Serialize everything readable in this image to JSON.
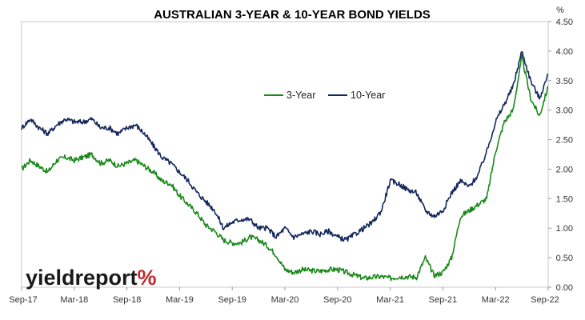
{
  "chart_data": {
    "type": "line",
    "title": "AUSTRALIAN 3-YEAR & 10-YEAR BOND YIELDS",
    "ylabel": "%",
    "ylim": [
      0,
      4.5
    ],
    "yticks": [
      "0.00",
      "0.50",
      "1.00",
      "1.50",
      "2.00",
      "2.50",
      "3.00",
      "3.50",
      "4.00",
      "4.50"
    ],
    "xtick_labels": [
      "Sep-17",
      "Mar-18",
      "Sep-18",
      "Mar-19",
      "Sep-19",
      "Mar-20",
      "Sep-20",
      "Mar-21",
      "Sep-21",
      "Mar-22",
      "Sep-22"
    ],
    "x": [
      "2017-09",
      "2017-10",
      "2017-11",
      "2017-12",
      "2018-01",
      "2018-02",
      "2018-03",
      "2018-04",
      "2018-05",
      "2018-06",
      "2018-07",
      "2018-08",
      "2018-09",
      "2018-10",
      "2018-11",
      "2018-12",
      "2019-01",
      "2019-02",
      "2019-03",
      "2019-04",
      "2019-05",
      "2019-06",
      "2019-07",
      "2019-08",
      "2019-09",
      "2019-10",
      "2019-11",
      "2019-12",
      "2020-01",
      "2020-02",
      "2020-03",
      "2020-04",
      "2020-05",
      "2020-06",
      "2020-07",
      "2020-08",
      "2020-09",
      "2020-10",
      "2020-11",
      "2020-12",
      "2021-01",
      "2021-02",
      "2021-03",
      "2021-04",
      "2021-05",
      "2021-06",
      "2021-07",
      "2021-08",
      "2021-09",
      "2021-10",
      "2021-11",
      "2021-12",
      "2022-01",
      "2022-02",
      "2022-03",
      "2022-04",
      "2022-05",
      "2022-06",
      "2022-07",
      "2022-08",
      "2022-09"
    ],
    "series": [
      {
        "name": "3-Year",
        "color": "#1a8a1a",
        "values": [
          2.0,
          2.15,
          2.05,
          1.95,
          2.15,
          2.2,
          2.15,
          2.2,
          2.25,
          2.1,
          2.15,
          2.05,
          2.1,
          2.15,
          2.05,
          1.95,
          1.8,
          1.75,
          1.55,
          1.4,
          1.25,
          1.05,
          0.95,
          0.8,
          0.75,
          0.75,
          0.85,
          0.8,
          0.7,
          0.55,
          0.3,
          0.25,
          0.3,
          0.28,
          0.27,
          0.3,
          0.3,
          0.25,
          0.2,
          0.15,
          0.17,
          0.18,
          0.15,
          0.18,
          0.18,
          0.17,
          0.5,
          0.2,
          0.25,
          0.5,
          1.2,
          1.3,
          1.4,
          1.5,
          2.3,
          2.8,
          3.0,
          3.9,
          3.2,
          2.9,
          3.4
        ]
      },
      {
        "name": "10-Year",
        "color": "#14285e",
        "values": [
          2.7,
          2.85,
          2.7,
          2.6,
          2.75,
          2.85,
          2.8,
          2.8,
          2.85,
          2.7,
          2.7,
          2.6,
          2.7,
          2.75,
          2.6,
          2.4,
          2.2,
          2.1,
          1.95,
          1.8,
          1.6,
          1.45,
          1.3,
          1.0,
          1.1,
          1.15,
          1.15,
          1.0,
          1.0,
          0.85,
          1.0,
          0.85,
          0.9,
          0.95,
          0.9,
          0.95,
          0.85,
          0.8,
          0.9,
          1.0,
          1.1,
          1.3,
          1.8,
          1.75,
          1.65,
          1.6,
          1.3,
          1.2,
          1.3,
          1.6,
          1.8,
          1.7,
          1.9,
          2.3,
          2.8,
          3.1,
          3.4,
          4.0,
          3.5,
          3.2,
          3.6
        ]
      }
    ],
    "legend": {
      "position": "top-center"
    },
    "grid": false,
    "y_axis_side": "right",
    "logo": {
      "text_main": "yieldreport",
      "text_symbol": "%"
    }
  }
}
